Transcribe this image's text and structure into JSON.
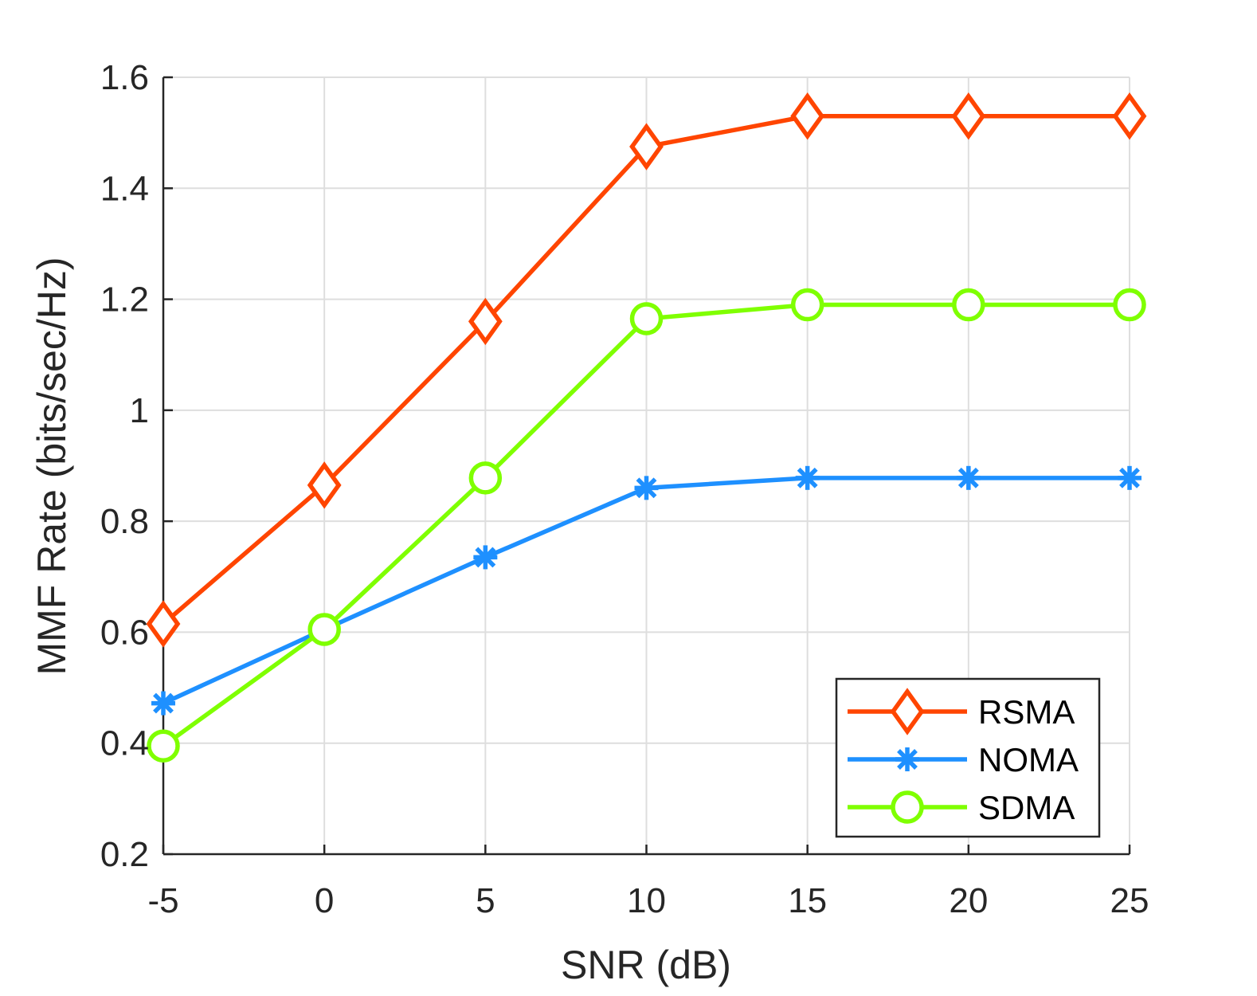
{
  "chart_data": {
    "type": "line",
    "title": "",
    "xlabel": "SNR (dB)",
    "ylabel": "MMF Rate (bits/sec/Hz)",
    "x": [
      -5,
      0,
      5,
      10,
      15,
      20,
      25
    ],
    "xlim": [
      -5,
      25
    ],
    "ylim": [
      0.2,
      1.6
    ],
    "xticks": [
      -5,
      0,
      5,
      10,
      15,
      20,
      25
    ],
    "xtick_labels": [
      "-5",
      "0",
      "5",
      "10",
      "15",
      "20",
      "25"
    ],
    "yticks": [
      0.2,
      0.4,
      0.6,
      0.8,
      1.0,
      1.2,
      1.4,
      1.6
    ],
    "ytick_labels": [
      "0.2",
      "0.4",
      "0.6",
      "0.8",
      "1",
      "1.2",
      "1.4",
      "1.6"
    ],
    "grid": true,
    "legend_position": "bottom-right",
    "series": [
      {
        "name": "RSMA",
        "marker": "diamond",
        "color": "#FF4500",
        "values": [
          0.615,
          0.865,
          1.16,
          1.475,
          1.53,
          1.53,
          1.53
        ]
      },
      {
        "name": "NOMA",
        "marker": "asterisk",
        "color": "#1E90FF",
        "values": [
          0.472,
          0.605,
          0.735,
          0.86,
          0.878,
          0.878,
          0.878
        ]
      },
      {
        "name": "SDMA",
        "marker": "circle",
        "color": "#7FFF00",
        "values": [
          0.395,
          0.605,
          0.878,
          1.165,
          1.19,
          1.19,
          1.19
        ]
      }
    ]
  }
}
